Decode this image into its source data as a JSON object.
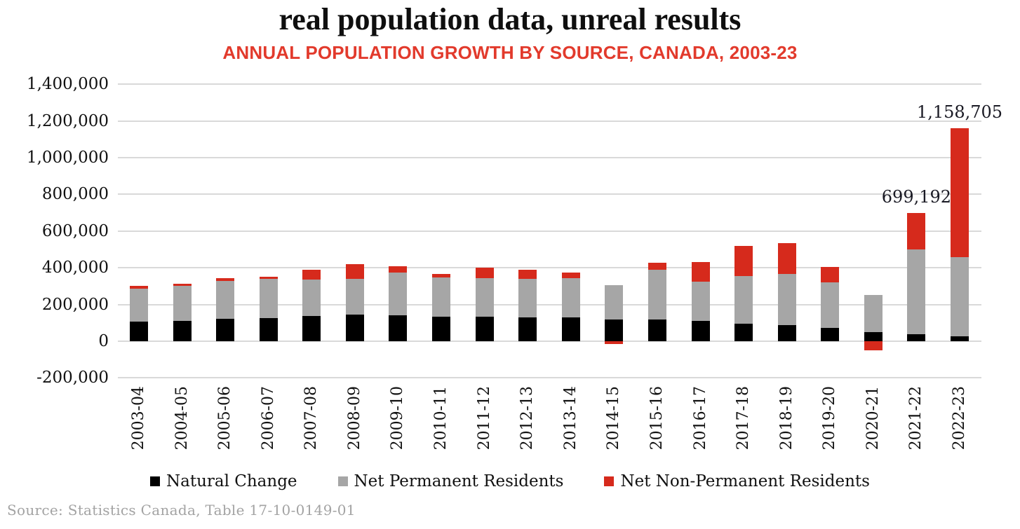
{
  "source_note": "Source: Statistics Canada, Table 17-10-0149-01",
  "colors": {
    "title_text": "#0f0f0f",
    "subtitle_text": "#e23a2c",
    "axis_text": "#111111",
    "grid": "#d9d9d9",
    "annotation_text": "#1a1a24",
    "source_text": "#a3a3a3",
    "background": "#ffffff"
  },
  "chart_data": {
    "type": "bar",
    "stacked": true,
    "grid": true,
    "legend_position": "bottom",
    "title": "real population data, unreal results",
    "subtitle": "ANNUAL POPULATION GROWTH BY SOURCE, CANADA, 2003-23",
    "xlabel": "",
    "ylabel": "",
    "ylim": [
      -200000,
      1400000
    ],
    "y_tick_step": 200000,
    "categories": [
      "2003-04",
      "2004-05",
      "2005-06",
      "2006-07",
      "2007-08",
      "2008-09",
      "2009-10",
      "2010-11",
      "2011-12",
      "2012-13",
      "2013-14",
      "2014-15",
      "2015-16",
      "2016-17",
      "2017-18",
      "2018-19",
      "2019-20",
      "2020-21",
      "2021-22",
      "2022-23"
    ],
    "series": [
      {
        "name": "Natural Change",
        "color": "#000000",
        "values": [
          108000,
          110000,
          121000,
          127000,
          138000,
          145000,
          142000,
          133000,
          135000,
          129000,
          128000,
          118000,
          120000,
          110000,
          94000,
          89000,
          72000,
          50000,
          40000,
          25000
        ]
      },
      {
        "name": "Net Permanent Residents",
        "color": "#a6a6a6",
        "values": [
          180000,
          191000,
          209000,
          212000,
          197000,
          194000,
          233000,
          216000,
          208000,
          210000,
          214000,
          187000,
          270000,
          214000,
          262000,
          278000,
          250000,
          203000,
          460000,
          434000
        ]
      },
      {
        "name": "Net Non-Permanent Residents",
        "color": "#d62a1c",
        "values": [
          14000,
          13000,
          13000,
          12000,
          55000,
          80000,
          34000,
          17000,
          58000,
          52000,
          33000,
          -15000,
          38000,
          106000,
          164000,
          169000,
          81000,
          -50000,
          199192,
          699705
        ]
      }
    ],
    "y_ticks": [
      {
        "value": 1400000,
        "label": "1,400,000"
      },
      {
        "value": 1200000,
        "label": "1,200,000"
      },
      {
        "value": 1000000,
        "label": "1,000,000"
      },
      {
        "value": 800000,
        "label": "800,000"
      },
      {
        "value": 600000,
        "label": "600,000"
      },
      {
        "value": 400000,
        "label": "400,000"
      },
      {
        "value": 200000,
        "label": "200,000"
      },
      {
        "value": 0,
        "label": "0"
      },
      {
        "value": -200000,
        "label": "-200,000"
      }
    ],
    "annotations": [
      {
        "category": "2021-22",
        "label": "699,192",
        "value": 699192
      },
      {
        "category": "2022-23",
        "label": "1,158,705",
        "value": 1158705
      }
    ]
  }
}
